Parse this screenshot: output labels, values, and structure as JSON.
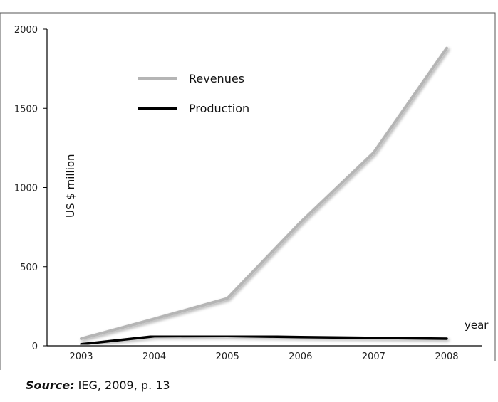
{
  "chart_data": {
    "type": "line",
    "x": [
      "2003",
      "2004",
      "2005",
      "2006",
      "2007",
      "2008"
    ],
    "series": [
      {
        "name": "Revenues",
        "values": [
          45,
          170,
          300,
          780,
          1220,
          1880
        ],
        "color": "#b5b5b5"
      },
      {
        "name": "Production",
        "values": [
          10,
          60,
          62,
          55,
          50,
          45
        ],
        "color": "#000000"
      }
    ],
    "ylim": [
      0,
      2000
    ],
    "yticks": [
      0,
      500,
      1000,
      1500,
      2000
    ],
    "ylabel": "US $ million",
    "xlabel": "year",
    "grid": false,
    "legend_position": "top-left"
  },
  "source": {
    "label": "Source:",
    "text": " IEG, 2009, p. 13"
  }
}
